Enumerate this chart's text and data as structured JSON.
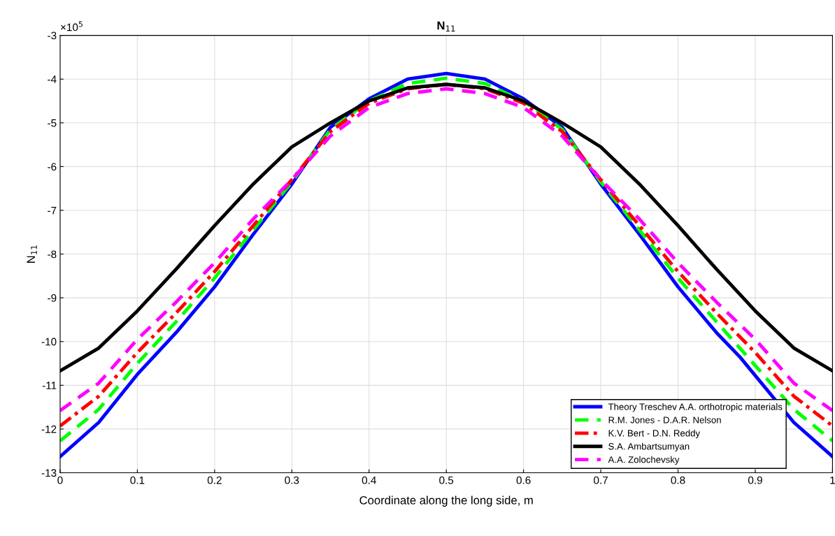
{
  "chart_data": {
    "type": "line",
    "title": "N$_{11}$",
    "xlabel": "Coordinate along the long side, m",
    "ylabel": "N$_{11}$",
    "annotations": [
      "×10$^{5}$"
    ],
    "x": [
      0,
      0.05,
      0.1,
      0.15,
      0.2,
      0.25,
      0.3,
      0.35,
      0.4,
      0.45,
      0.5,
      0.55,
      0.6,
      0.65,
      0.7,
      0.75,
      0.8,
      0.85,
      0.9,
      0.95,
      1
    ],
    "series": [
      {
        "name": "Theory Treschev A.A. orthotropic materials",
        "color": "#0000ff",
        "line_style": "solid",
        "x": [
          0,
          0.05,
          0.1,
          0.15,
          0.2,
          0.25,
          0.3,
          0.35,
          0.4,
          0.45,
          0.5,
          0.55,
          0.6,
          0.65,
          0.7,
          0.75,
          0.8,
          0.85,
          0.88,
          0.95,
          1
        ],
        "values": [
          -12.63,
          -11.85,
          -10.75,
          -9.8,
          -8.75,
          -7.55,
          -6.4,
          -5.1,
          -4.45,
          -4.0,
          -3.87,
          -4.0,
          -4.45,
          -5.1,
          -6.4,
          -7.55,
          -8.75,
          -9.8,
          -10.35,
          -11.85,
          -12.63
        ]
      },
      {
        "name": "R.M. Jones - D.A.R. Nelson",
        "color": "#00ff00",
        "line_style": "dashed",
        "x": [
          0,
          0.05,
          0.1,
          0.15,
          0.2,
          0.25,
          0.3,
          0.35,
          0.4,
          0.45,
          0.5,
          0.55,
          0.6,
          0.65,
          0.7,
          0.75,
          0.8,
          0.85,
          0.88,
          0.95,
          1
        ],
        "values": [
          -12.27,
          -11.55,
          -10.5,
          -9.55,
          -8.55,
          -7.45,
          -6.35,
          -5.15,
          -4.5,
          -4.1,
          -3.98,
          -4.1,
          -4.5,
          -5.15,
          -6.35,
          -7.45,
          -8.55,
          -9.55,
          -10.15,
          -11.55,
          -12.27
        ]
      },
      {
        "name": "K.V. Bert - D.N. Reddy",
        "color": "#ff0000",
        "line_style": "dashdot",
        "values": [
          -11.93,
          -11.25,
          -10.25,
          -9.35,
          -8.4,
          -7.35,
          -6.3,
          -5.2,
          -4.55,
          -4.22,
          -4.12,
          -4.22,
          -4.55,
          -5.2,
          -6.3,
          -7.35,
          -8.4,
          -9.35,
          -10.25,
          -11.25,
          -11.93
        ]
      },
      {
        "name": "S.A. Ambartsumyan",
        "color": "#000000",
        "line_style": "solid",
        "values": [
          -10.67,
          -10.15,
          -9.3,
          -8.35,
          -7.35,
          -6.4,
          -5.55,
          -5.0,
          -4.5,
          -4.2,
          -4.12,
          -4.2,
          -4.5,
          -5.0,
          -5.55,
          -6.4,
          -7.35,
          -8.35,
          -9.3,
          -10.15,
          -10.67
        ]
      },
      {
        "name": "A.A. Zolochevsky",
        "color": "#ff00ff",
        "line_style": "dashed",
        "values": [
          -11.58,
          -10.95,
          -9.95,
          -9.1,
          -8.2,
          -7.2,
          -6.3,
          -5.3,
          -4.65,
          -4.33,
          -4.22,
          -4.33,
          -4.65,
          -5.3,
          -6.3,
          -7.2,
          -8.2,
          -9.1,
          -9.95,
          -10.95,
          -11.58
        ]
      }
    ],
    "xlim": [
      0,
      1
    ],
    "xticks": [
      0,
      0.1,
      0.2,
      0.3,
      0.4,
      0.5,
      0.6,
      0.7,
      0.8,
      0.9,
      1
    ],
    "ylim": [
      -13,
      -3
    ],
    "yticks": [
      -3,
      -4,
      -5,
      -6,
      -7,
      -8,
      -9,
      -10,
      -11,
      -12,
      -13
    ],
    "grid": true,
    "legend": "bottom right",
    "marker": "none"
  }
}
